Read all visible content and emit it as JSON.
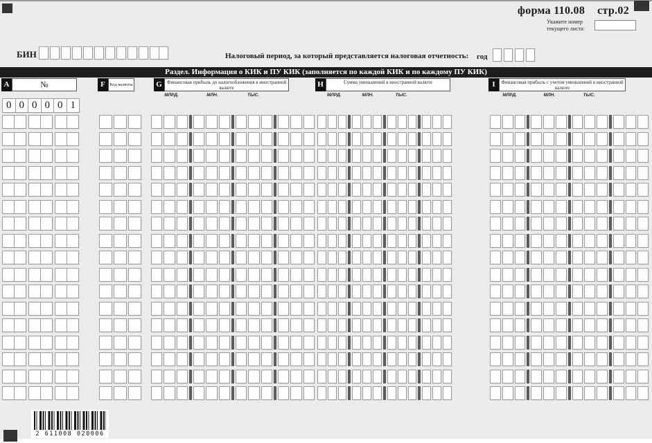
{
  "page": {
    "form_title": "форма 110.08",
    "page_label": "стр.02",
    "sheet_note": [
      "Укажите номер",
      "текущего листа:"
    ],
    "bin_label": "БИН",
    "period_label": "Налоговый период, за который представляется налоговая отчетность:",
    "year_label": "год"
  },
  "section_title": "Раздел. Информация о КИК и ПУ КИК (заполняется по каждой КИК и по каждому ПУ КИК)",
  "columns": {
    "a": {
      "code": "A",
      "title": "№",
      "cells": 6
    },
    "f": {
      "code": "F",
      "title": "Код валюты",
      "cells": 3
    },
    "g": {
      "code": "G",
      "title": "Финансовая прибыль до налогообложения в иностранной валюте"
    },
    "h": {
      "code": "H",
      "title": "Сумма уменьшений в иностранной валюте"
    },
    "i": {
      "code": "I",
      "title": "Финансовая прибыль с учетом уменьшений в иностранной валюте"
    }
  },
  "scale_labels": [
    "МЛРД.",
    "МЛН.",
    "ТЫС."
  ],
  "structure": {
    "bin_cells": 12,
    "year_cells": 4,
    "numeric_groups": 4,
    "group_cells": 3,
    "empty_rows": 17
  },
  "first_row_digits": [
    "0",
    "0",
    "0",
    "0",
    "0",
    "1"
  ],
  "barcode_number": "2 611008 020006",
  "colors": {
    "page_bg": "#ebebeb",
    "bar_bg": "#1e1e1e",
    "cell_border": "#9c9c9c",
    "group_separator": "#5c5c5c"
  }
}
